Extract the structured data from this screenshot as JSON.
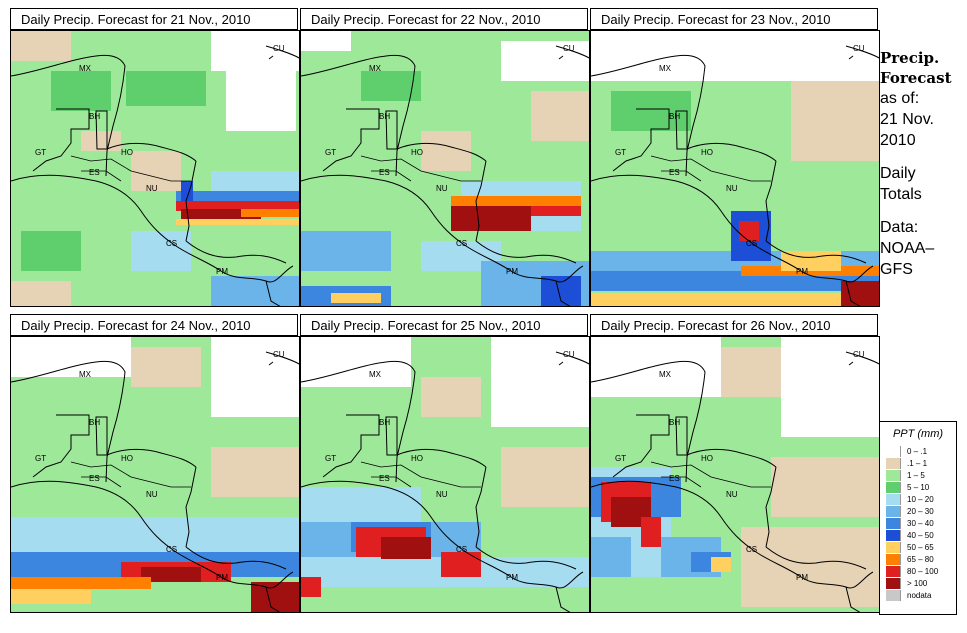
{
  "panels": [
    {
      "title": "Daily Precip. Forecast for  21 Nov., 2010"
    },
    {
      "title": "Daily Precip. Forecast for  22 Nov., 2010"
    },
    {
      "title": "Daily Precip. Forecast for  23 Nov., 2010"
    },
    {
      "title": "Daily Precip. Forecast for  24 Nov., 2010"
    },
    {
      "title": "Daily Precip. Forecast for  25 Nov., 2010"
    },
    {
      "title": "Daily Precip. Forecast for  26 Nov., 2010"
    }
  ],
  "map_labels": {
    "mx": "MX",
    "bh": "BH",
    "gt": "GT",
    "ho": "HO",
    "es": "ES",
    "nu": "NU",
    "cs": "CS",
    "pm": "PM",
    "cu": "CU"
  },
  "side": {
    "head1": "Precip.",
    "head2": "Forecast",
    "asof": "as of:",
    "date1": "21 Nov.",
    "date2": "2010",
    "daily1": "Daily",
    "daily2": "Totals",
    "data1": "Data:",
    "data2": "NOAA–",
    "data3": "GFS"
  },
  "legend": {
    "title": "PPT (mm)",
    "items": [
      {
        "label": "0 – .1",
        "color": "#ffffff"
      },
      {
        "label": ".1 – 1",
        "color": "#e6d2b4"
      },
      {
        "label": "1 – 5",
        "color": "#9ee89a"
      },
      {
        "label": "5 – 10",
        "color": "#5fcf6e"
      },
      {
        "label": "10 – 20",
        "color": "#a6dcf0"
      },
      {
        "label": "20 – 30",
        "color": "#6ab4ea"
      },
      {
        "label": "30 – 40",
        "color": "#3c86e0"
      },
      {
        "label": "40 – 50",
        "color": "#1c4fd6"
      },
      {
        "label": "50 – 65",
        "color": "#ffd060"
      },
      {
        "label": "65 – 80",
        "color": "#ff8000"
      },
      {
        "label": "80 – 100",
        "color": "#e02020"
      },
      {
        "label": "> 100",
        "color": "#a01010"
      },
      {
        "label": "nodata",
        "color": "#c8c8c8"
      }
    ]
  }
}
